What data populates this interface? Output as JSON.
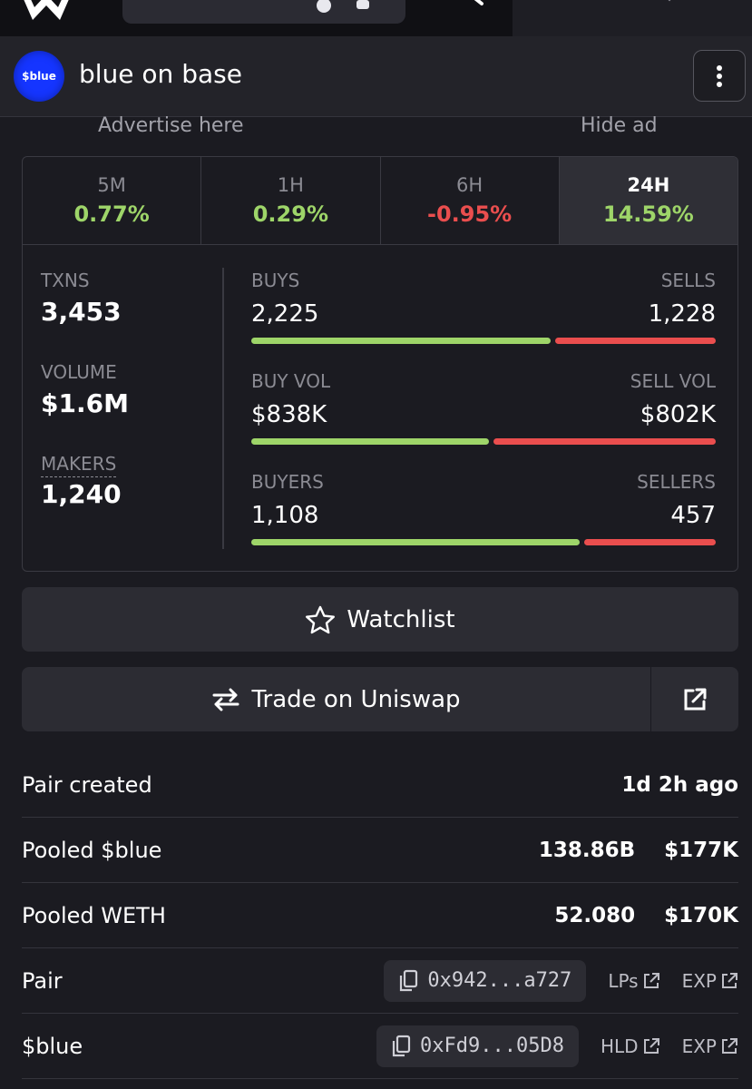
{
  "header": {
    "avatar_text": "$blue",
    "title": "blue on base"
  },
  "ad": {
    "advertise": "Advertise here",
    "hide": "Hide ad"
  },
  "timeframes": [
    {
      "label": "5M",
      "change": "0.77%"
    },
    {
      "label": "1H",
      "change": "0.29%"
    },
    {
      "label": "6H",
      "change": "-0.95%"
    },
    {
      "label": "24H",
      "change": "14.59%"
    }
  ],
  "stats": {
    "txns_label": "TXNS",
    "txns": "3,453",
    "volume_label": "VOLUME",
    "volume": "$1.6M",
    "makers_label": "MAKERS",
    "makers": "1,240",
    "buys_label": "BUYS",
    "buys": "2,225",
    "sells_label": "SELLS",
    "sells": "1,228",
    "buy_vol_label": "BUY VOL",
    "buy_vol": "$838K",
    "sell_vol_label": "SELL VOL",
    "sell_vol": "$802K",
    "buyers_label": "BUYERS",
    "buyers": "1,108",
    "sellers_label": "SELLERS",
    "sellers": "457"
  },
  "bars": {
    "buys_share": 0.644,
    "buy_vol_share": 0.511,
    "buyers_share": 0.708
  },
  "buttons": {
    "watchlist": "Watchlist",
    "trade": "Trade on Uniswap"
  },
  "info": {
    "pair_created_label": "Pair created",
    "pair_created_value": "1d 2h ago",
    "pooled_blue_label": "Pooled $blue",
    "pooled_blue_amount": "138.86B",
    "pooled_blue_usd": "$177K",
    "pooled_weth_label": "Pooled WETH",
    "pooled_weth_amount": "52.080",
    "pooled_weth_usd": "$170K",
    "pair_label": "Pair",
    "pair_address": "0x942...a727",
    "pair_link1": "LPs",
    "pair_link2": "EXP",
    "token_label": "$blue",
    "token_address": "0xFd9...05D8",
    "token_link1": "HLD",
    "token_link2": "EXP"
  },
  "colors": {
    "positive": "#9ed569",
    "negative": "#ea4e4e",
    "avatar": "#1535ff"
  }
}
